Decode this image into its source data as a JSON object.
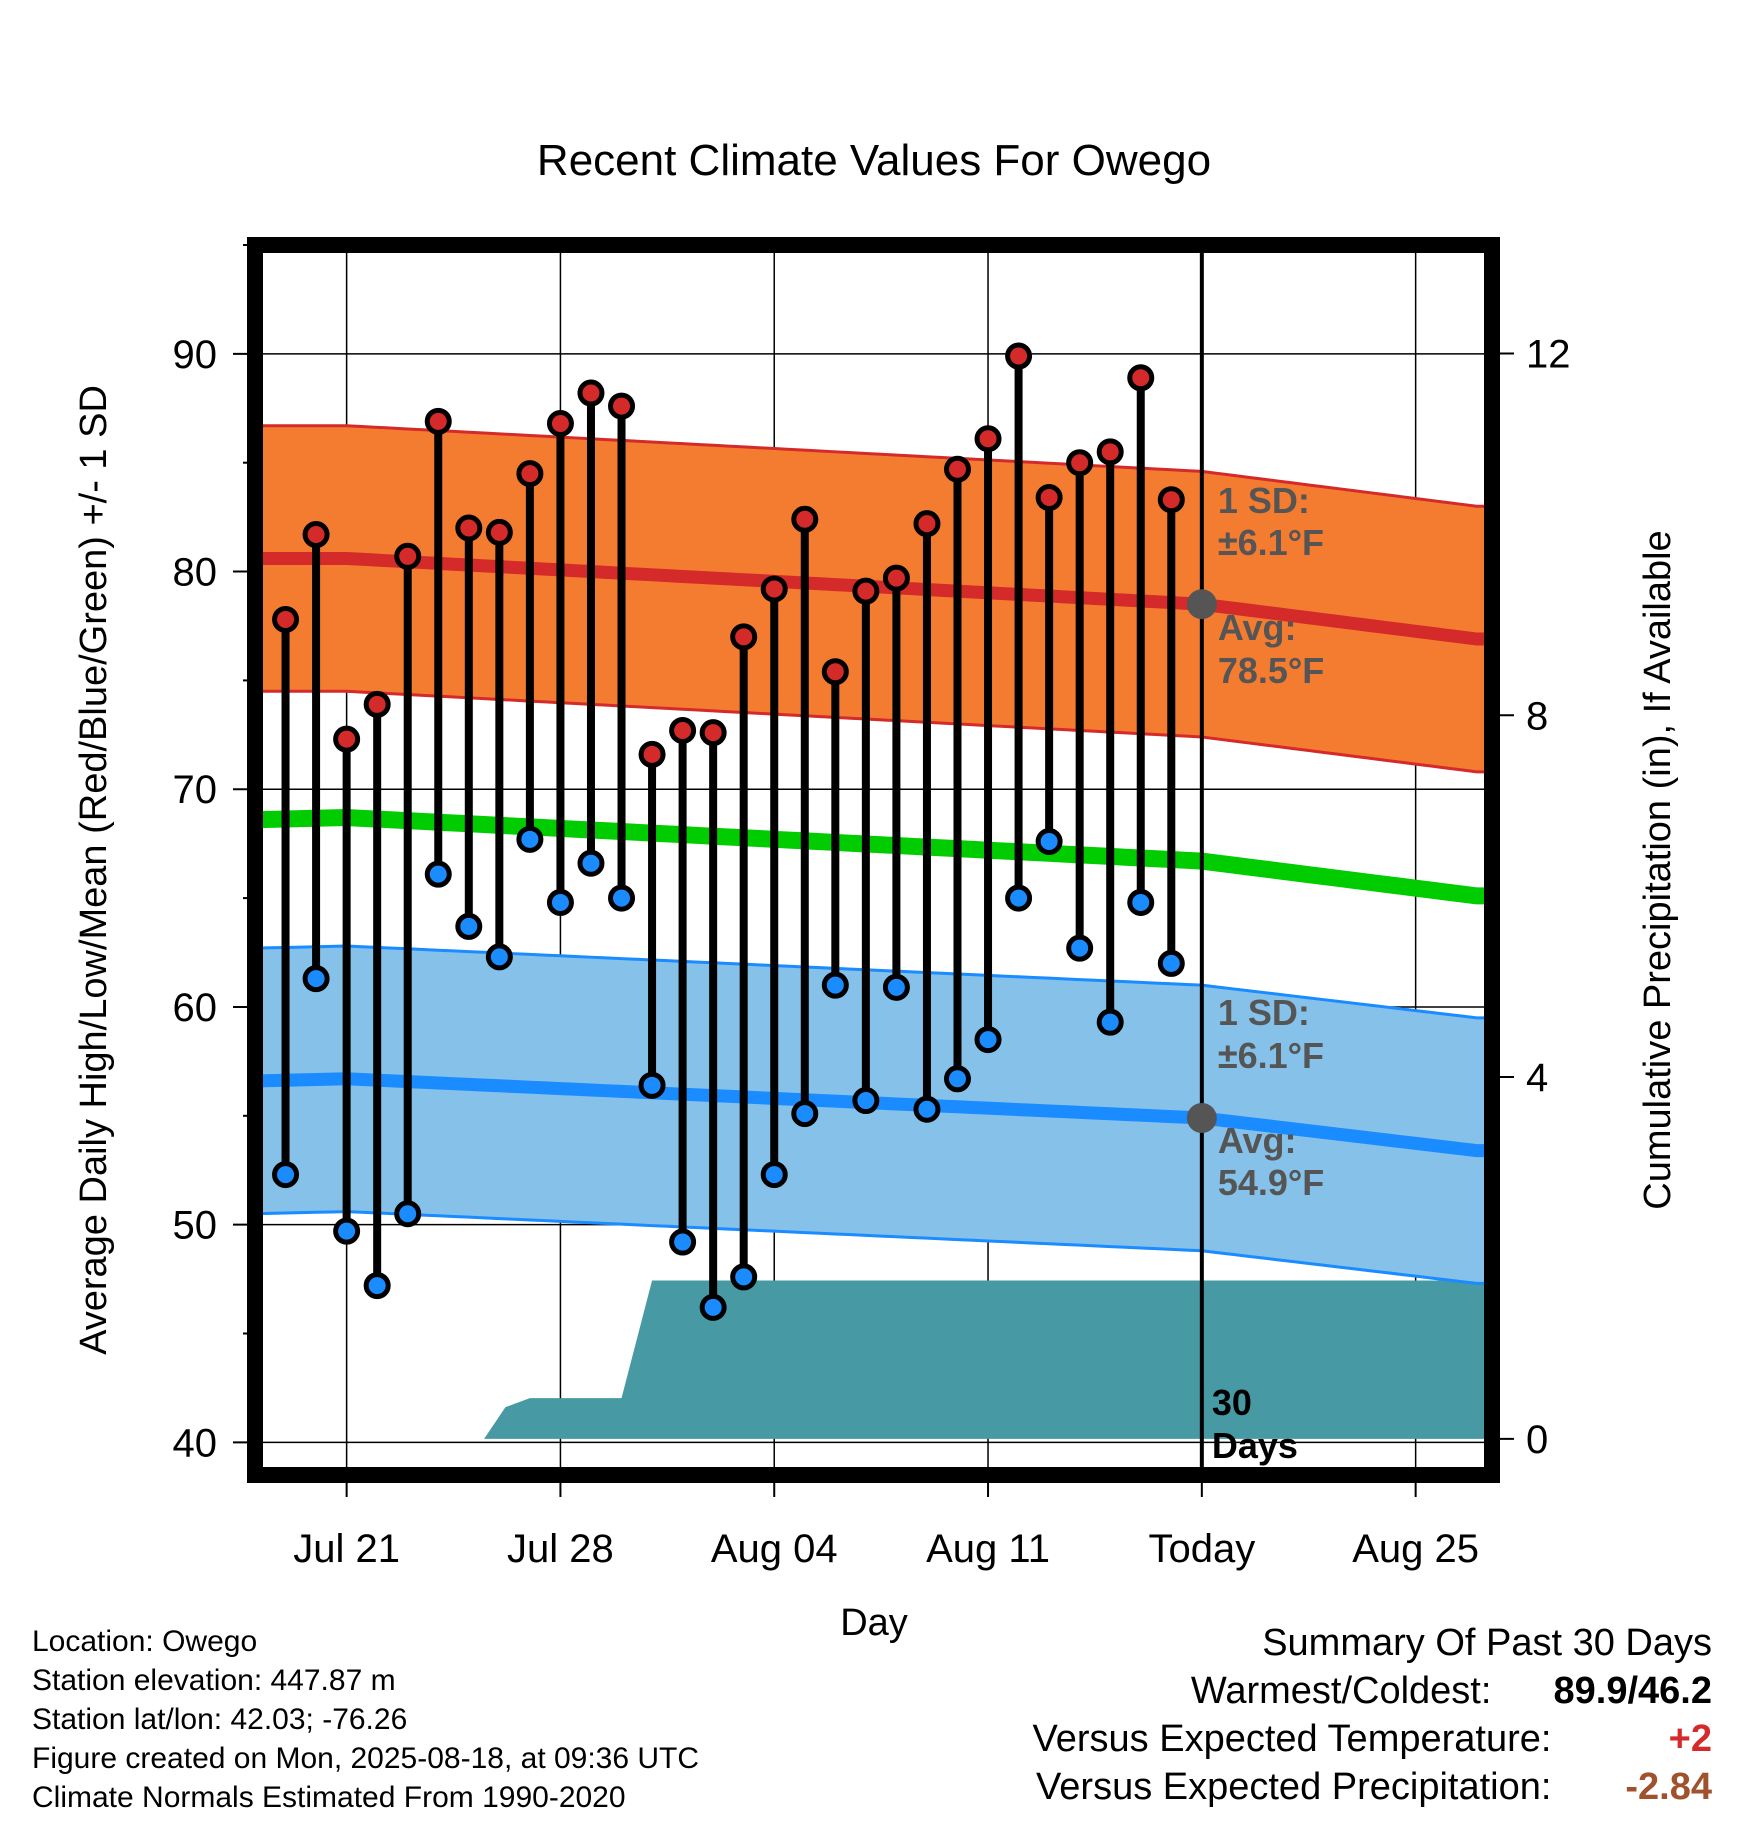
{
  "chart_data": {
    "type": "line",
    "title": "Recent Climate Values For Owego",
    "xlabel": "Day",
    "ylabel_left": "Average Daily High/Low/Mean (Red/Blue/Green) +/- 1 SD",
    "ylabel_right": "Cumulative Precipitation (in), If Available",
    "x_tick_labels": [
      {
        "day": 3,
        "label": "Jul 21"
      },
      {
        "day": 10,
        "label": "Jul 28"
      },
      {
        "day": 17,
        "label": "Aug 04"
      },
      {
        "day": 24,
        "label": "Aug 11"
      },
      {
        "day": 31,
        "label": "Today"
      },
      {
        "day": 38,
        "label": "Aug 25"
      }
    ],
    "x_range": [
      0,
      40.5
    ],
    "y_left_range": [
      38.5,
      95
    ],
    "y_left_ticks": [
      40,
      50,
      60,
      70,
      80,
      90
    ],
    "y_right_ticks": [
      0,
      4,
      8,
      12
    ],
    "y_right_range": [
      -0.4,
      13.2
    ],
    "grid": true,
    "today_day": 31,
    "days": [
      1,
      2,
      3,
      4,
      5,
      6,
      7,
      8,
      9,
      10,
      11,
      12,
      13,
      14,
      15,
      16,
      17,
      18,
      19,
      20,
      21,
      22,
      23,
      24,
      25,
      26,
      27,
      28,
      29,
      30
    ],
    "series": [
      {
        "name": "High",
        "color": "#d42a2a",
        "values": [
          77.8,
          81.7,
          72.3,
          73.9,
          80.7,
          86.9,
          82.0,
          81.8,
          84.5,
          86.8,
          88.2,
          87.6,
          71.6,
          72.7,
          72.6,
          77.0,
          79.2,
          82.4,
          75.4,
          79.1,
          79.7,
          82.2,
          84.7,
          86.1,
          89.9,
          83.4,
          85.0,
          85.5,
          88.9,
          83.3
        ]
      },
      {
        "name": "Low",
        "color": "#1a8cff",
        "values": [
          52.3,
          61.3,
          49.7,
          47.2,
          50.5,
          66.1,
          63.7,
          62.3,
          67.7,
          64.8,
          66.6,
          65.0,
          56.4,
          49.2,
          46.2,
          47.6,
          52.3,
          55.1,
          61.0,
          55.7,
          60.9,
          55.3,
          56.7,
          58.5,
          65.0,
          67.6,
          62.7,
          59.3,
          64.8,
          62.0
        ]
      }
    ],
    "normal_high": {
      "days": [
        0,
        3,
        31,
        40
      ],
      "avg": [
        80.6,
        80.6,
        78.5,
        76.9
      ],
      "sd": 6.1
    },
    "normal_low": {
      "days": [
        0,
        3,
        31,
        40
      ],
      "avg": [
        56.6,
        56.7,
        54.9,
        53.4
      ],
      "sd": 6.1
    },
    "normal_mean": {
      "days": [
        0,
        3,
        31,
        40
      ],
      "values": [
        68.6,
        68.7,
        66.7,
        65.1
      ]
    },
    "precipitation": {
      "days": [
        7.5,
        8.2,
        9.0,
        12.0,
        13.0,
        40.5
      ],
      "values": [
        0.0,
        0.35,
        0.45,
        0.45,
        1.75,
        1.75
      ]
    },
    "annotations": {
      "high_sd": [
        "1 SD:",
        "±6.1°F"
      ],
      "high_avg": [
        "Avg:",
        "78.5°F"
      ],
      "low_sd": [
        "1 SD:",
        "±6.1°F"
      ],
      "low_avg": [
        "Avg:",
        "54.9°F"
      ],
      "period": [
        "30",
        "Days"
      ]
    },
    "colors": {
      "high_band": "#f47c30",
      "high_line": "#d42a2a",
      "low_band": "#85c1e9",
      "low_line": "#1a8cff",
      "mean_line": "#00cc00",
      "precip_fill": "#479aa3",
      "today_marker": "#555555"
    }
  },
  "info": {
    "location": "Location: Owego",
    "elevation": "Station elevation: 447.87 m",
    "latlon": "Station lat/lon: 42.03; -76.26",
    "created": "Figure created on Mon, 2025-08-18, at 09:36 UTC",
    "normals": "Climate Normals Estimated From 1990-2020"
  },
  "summary": {
    "title": "Summary Of Past 30 Days",
    "warmest_label": "Warmest/Coldest:",
    "warmest_value": "89.9/46.2",
    "temp_label": "Versus Expected Temperature:",
    "temp_value": "+2",
    "temp_color": "#d42a2a",
    "precip_label": "Versus Expected Precipitation:",
    "precip_value": "-2.84",
    "precip_color": "#a0522d"
  }
}
